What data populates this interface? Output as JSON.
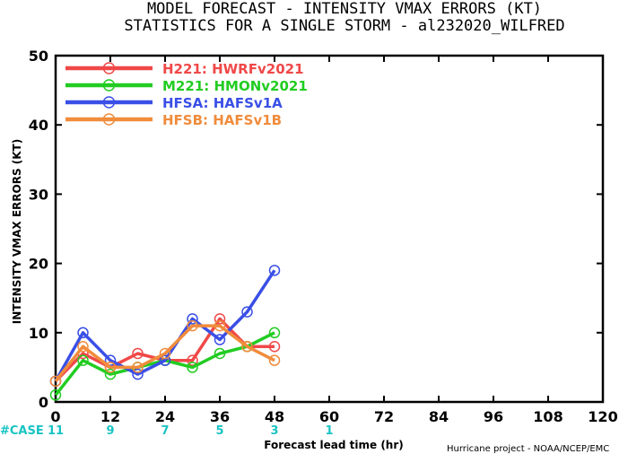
{
  "chart_data": {
    "type": "line",
    "title": "MODEL FORECAST - INTENSITY VMAX ERRORS (KT)",
    "subtitle": "STATISTICS FOR A SINGLE STORM - al232020_WILFRED",
    "xlabel": "Forecast lead time (hr)",
    "ylabel": "INTENSITY VMAX ERRORS (KT)",
    "xlim": [
      0,
      120
    ],
    "ylim": [
      0,
      50
    ],
    "x_ticks": [
      0,
      12,
      24,
      36,
      48,
      60,
      72,
      84,
      96,
      108,
      120
    ],
    "y_ticks": [
      0,
      10,
      20,
      30,
      40,
      50
    ],
    "grid": false,
    "legend_position": "top-left",
    "series": [
      {
        "name": "H221: HWRFv2021",
        "color": "#f04848",
        "x": [
          0,
          6,
          12,
          18,
          24,
          30,
          36,
          42,
          48
        ],
        "y": [
          3,
          7,
          5,
          7,
          6,
          6,
          12,
          8,
          8
        ]
      },
      {
        "name": "M221: HMONv2021",
        "color": "#22cc22",
        "x": [
          0,
          6,
          12,
          18,
          24,
          30,
          36,
          42,
          48
        ],
        "y": [
          1,
          6,
          4,
          5,
          6,
          5,
          7,
          8,
          10
        ]
      },
      {
        "name": "HFSA: HAFSv1A",
        "color": "#3a4fe6",
        "x": [
          0,
          6,
          12,
          18,
          24,
          30,
          36,
          42,
          48
        ],
        "y": [
          3,
          10,
          6,
          4,
          6,
          12,
          9,
          13,
          19
        ]
      },
      {
        "name": "HFSB: HAFSv1B",
        "color": "#f08c3c",
        "x": [
          0,
          6,
          12,
          18,
          24,
          30,
          36,
          42,
          48
        ],
        "y": [
          3,
          8,
          5,
          5,
          7,
          11,
          11,
          8,
          6
        ]
      }
    ],
    "cases": {
      "label": "#CASE",
      "x": [
        0,
        12,
        24,
        36,
        48,
        60
      ],
      "values": [
        "11",
        "9",
        "7",
        "5",
        "3",
        "1"
      ]
    }
  },
  "credit": "Hurricane project - NOAA/NCEP/EMC"
}
